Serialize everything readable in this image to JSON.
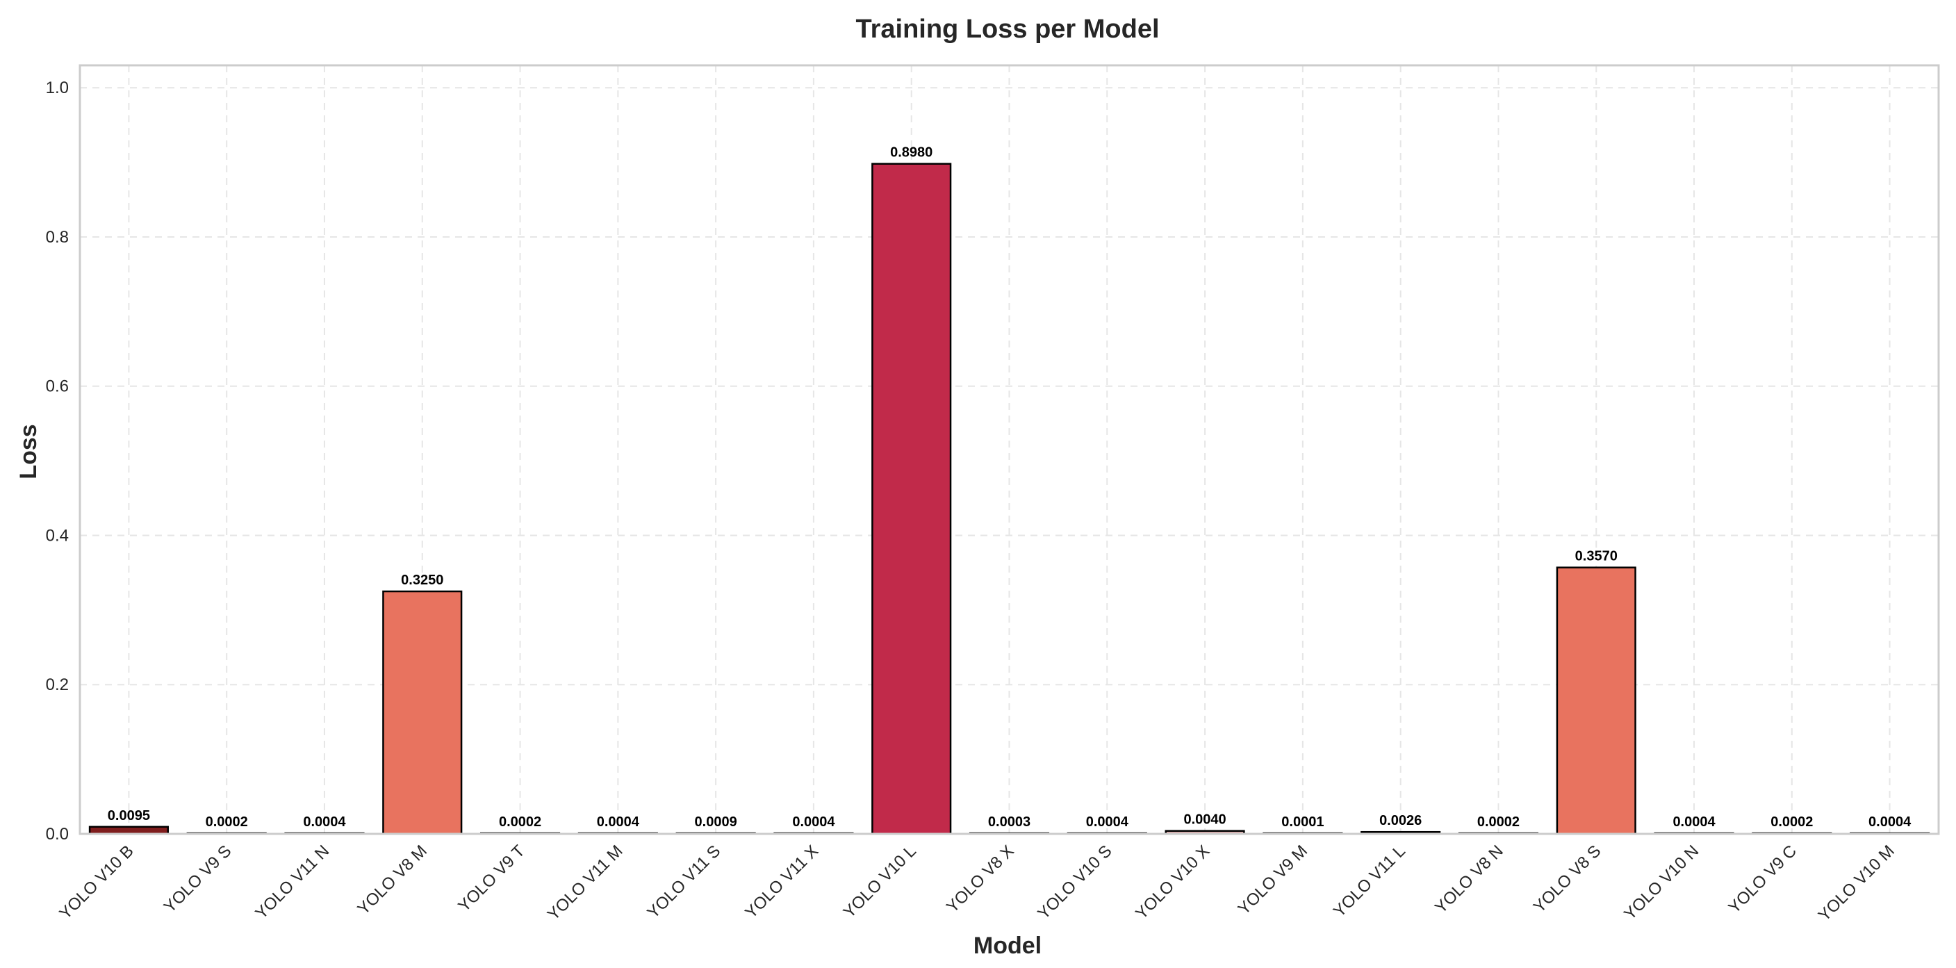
{
  "chart_data": {
    "type": "bar",
    "title": "Training Loss per Model",
    "xlabel": "Model",
    "ylabel": "Loss",
    "ylim": [
      0,
      1.03
    ],
    "yticks": [
      "0.0",
      "0.2",
      "0.4",
      "0.6",
      "0.8",
      "1.0"
    ],
    "grid": true,
    "categories": [
      "YOLO V10 B",
      "YOLO V9 S",
      "YOLO V11 N",
      "YOLO V8 M",
      "YOLO V9 T",
      "YOLO V11 M",
      "YOLO V11 S",
      "YOLO V11 X",
      "YOLO V10 L",
      "YOLO V8 X",
      "YOLO V10 S",
      "YOLO V10 X",
      "YOLO V9 M",
      "YOLO V11  L",
      "YOLO V8 N",
      "YOLO V8 S",
      "YOLO V10 N",
      "YOLO V9  C",
      "YOLO V10 M"
    ],
    "values": [
      0.0095,
      0.0002,
      0.0004,
      0.325,
      0.0002,
      0.0004,
      0.0009,
      0.0004,
      0.898,
      0.0003,
      0.0004,
      0.004,
      0.0001,
      0.0026,
      0.0002,
      0.357,
      0.0004,
      0.0002,
      0.0004
    ],
    "value_labels": [
      "0.0095",
      "0.0002",
      "0.0004",
      "0.3250",
      "0.0002",
      "0.0004",
      "0.0009",
      "0.0004",
      "0.8980",
      "0.0003",
      "0.0004",
      "0.0040",
      "0.0001",
      "0.0026",
      "0.0002",
      "0.3570",
      "0.0004",
      "0.0002",
      "0.0004"
    ],
    "bar_colors": [
      "#7f1d1d",
      "#dcdcdc",
      "#e8e0e0",
      "#e8735f",
      "#e0e0e0",
      "#e8e0e0",
      "#e8d8d8",
      "#e8e0e0",
      "#c12a4a",
      "#e0e0e0",
      "#e8e0e0",
      "#d8a8a8",
      "#e0e0e0",
      "#d8a8a8",
      "#e0e0e0",
      "#e8735f",
      "#e8e0e0",
      "#e0e0e0",
      "#e8e0e0"
    ],
    "colors": {
      "grid": "#e6e6e6",
      "frame": "#cccccc",
      "edge": "#000000"
    }
  }
}
